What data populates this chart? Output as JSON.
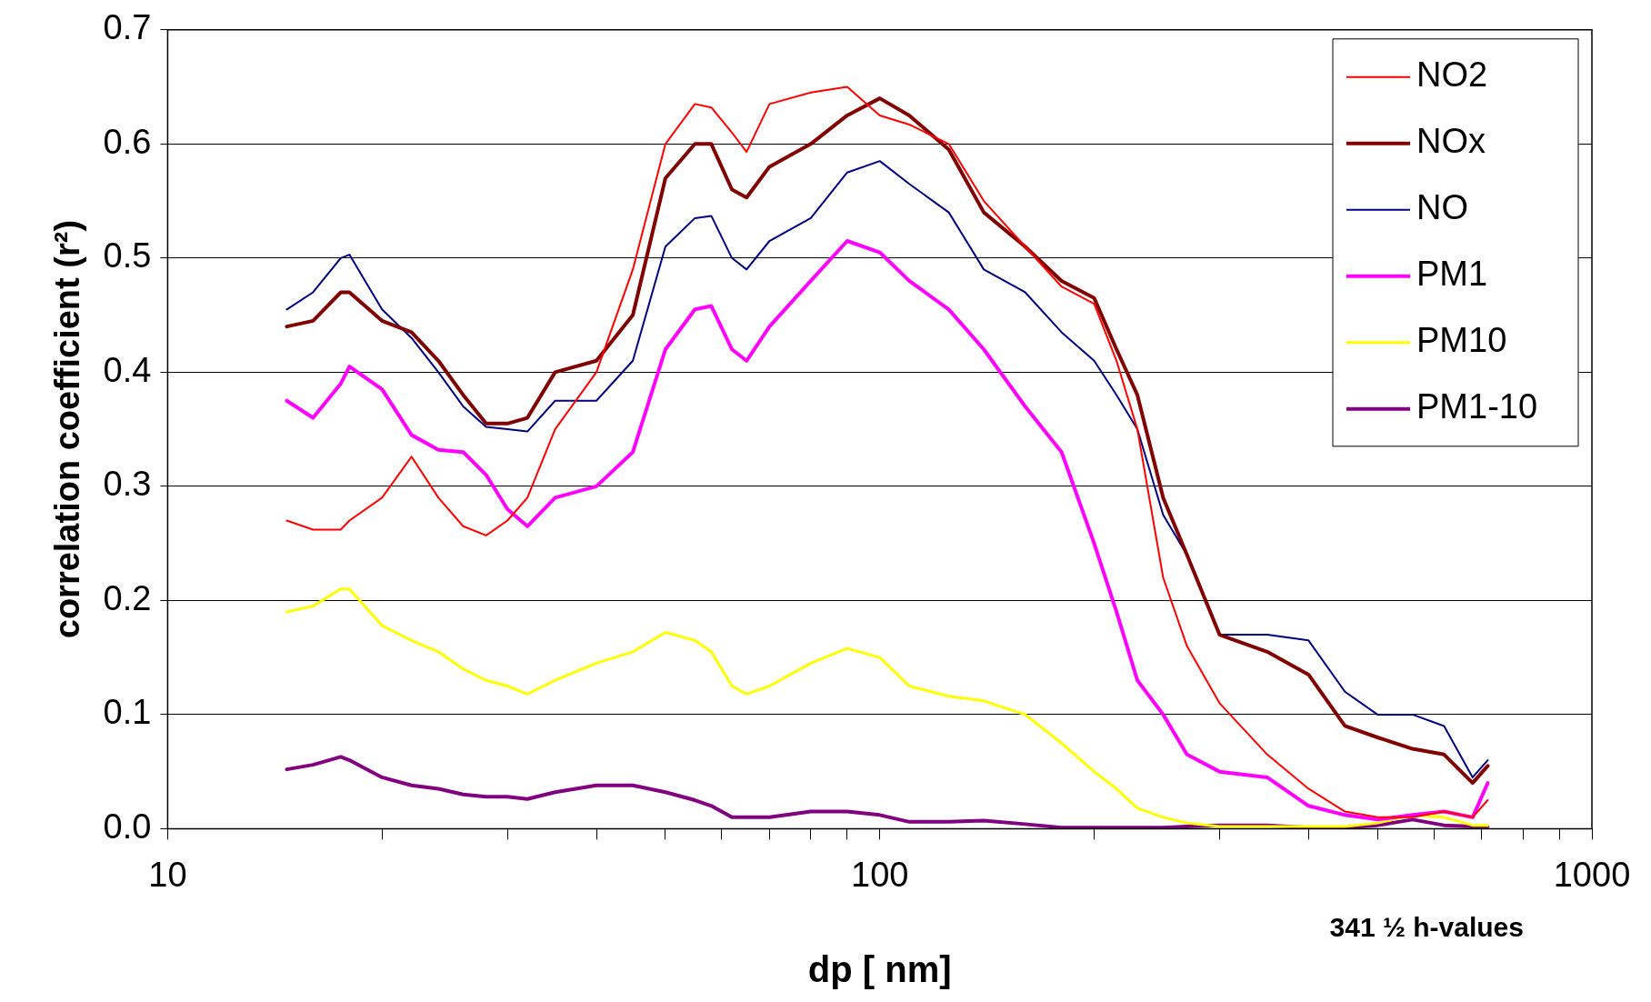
{
  "chart_data": {
    "type": "line",
    "xlabel": "dp [ nm]",
    "ylabel": "correlation coefficient (r²)",
    "log": "x",
    "xlim": [
      10,
      1000
    ],
    "xticks": [
      10,
      {
        "value": 20,
        "label": null
      },
      {
        "value": 30,
        "label": null
      },
      {
        "value": 40,
        "label": null
      },
      {
        "value": 50,
        "label": null
      },
      {
        "value": 60,
        "label": null
      },
      {
        "value": 70,
        "label": null
      },
      {
        "value": 80,
        "label": null
      },
      {
        "value": 90,
        "label": null
      },
      100,
      {
        "value": 200,
        "label": null
      },
      {
        "value": 300,
        "label": null
      },
      {
        "value": 400,
        "label": null
      },
      {
        "value": 500,
        "label": null
      },
      {
        "value": 600,
        "label": null
      },
      {
        "value": 700,
        "label": null
      },
      {
        "value": 800,
        "label": null
      },
      {
        "value": 900,
        "label": null
      },
      1000
    ],
    "ylim": [
      0,
      0.7
    ],
    "yticks": [
      {
        "value": 0,
        "label": "0.0"
      },
      {
        "value": 0.1,
        "label": "0.1"
      },
      {
        "value": 0.2,
        "label": "0.2"
      },
      {
        "value": 0.3,
        "label": "0.3"
      },
      {
        "value": 0.4,
        "label": "0.4"
      },
      {
        "value": 0.5,
        "label": "0.5"
      },
      {
        "value": 0.6,
        "label": "0.6"
      },
      {
        "value": 0.7,
        "label": "0.7"
      }
    ],
    "grid": "y",
    "legend": "top right",
    "marker": "none",
    "annotations": [
      "341 ½ h-values"
    ],
    "x": [
      14.7,
      16,
      17.5,
      18,
      20,
      22,
      24,
      26,
      28,
      30,
      32,
      35,
      40,
      45,
      50,
      55,
      58,
      62,
      65,
      70,
      80,
      90,
      100,
      110,
      125,
      140,
      160,
      180,
      200,
      215,
      230,
      250,
      270,
      300,
      350,
      400,
      450,
      500,
      560,
      620,
      680,
      714
    ],
    "series": [
      {
        "name": "NO2",
        "color": "#ff0000",
        "values": [
          0.27,
          0.262,
          0.262,
          0.27,
          0.29,
          0.326,
          0.29,
          0.265,
          0.257,
          0.27,
          0.29,
          0.35,
          0.4,
          0.49,
          0.6,
          0.635,
          0.632,
          0.61,
          0.593,
          0.635,
          0.645,
          0.65,
          0.625,
          0.617,
          0.6,
          0.55,
          0.51,
          0.475,
          0.46,
          0.41,
          0.35,
          0.22,
          0.16,
          0.11,
          0.065,
          0.035,
          0.015,
          0.01,
          0.01,
          0.015,
          0.01,
          0.025
        ]
      },
      {
        "name": "NOx",
        "color": "#800000",
        "values": [
          0.44,
          0.445,
          0.47,
          0.47,
          0.445,
          0.435,
          0.41,
          0.38,
          0.355,
          0.355,
          0.36,
          0.4,
          0.41,
          0.45,
          0.57,
          0.6,
          0.6,
          0.56,
          0.553,
          0.58,
          0.6,
          0.625,
          0.64,
          0.625,
          0.595,
          0.54,
          0.51,
          0.48,
          0.465,
          0.42,
          0.38,
          0.29,
          0.24,
          0.17,
          0.155,
          0.135,
          0.09,
          0.08,
          0.07,
          0.065,
          0.04,
          0.055
        ]
      },
      {
        "name": "NO",
        "color": "#000080",
        "values": [
          0.455,
          0.47,
          0.5,
          0.503,
          0.455,
          0.43,
          0.4,
          0.37,
          0.352,
          0.35,
          0.348,
          0.375,
          0.375,
          0.41,
          0.51,
          0.535,
          0.537,
          0.5,
          0.49,
          0.515,
          0.535,
          0.575,
          0.585,
          0.565,
          0.54,
          0.49,
          0.47,
          0.435,
          0.41,
          0.38,
          0.35,
          0.275,
          0.24,
          0.17,
          0.17,
          0.165,
          0.12,
          0.1,
          0.1,
          0.09,
          0.045,
          0.06
        ]
      },
      {
        "name": "PM1",
        "color": "#ff00ff",
        "values": [
          0.375,
          0.36,
          0.39,
          0.405,
          0.385,
          0.345,
          0.332,
          0.33,
          0.31,
          0.28,
          0.265,
          0.29,
          0.3,
          0.33,
          0.42,
          0.455,
          0.458,
          0.42,
          0.41,
          0.44,
          0.48,
          0.515,
          0.505,
          0.48,
          0.455,
          0.42,
          0.37,
          0.33,
          0.25,
          0.19,
          0.13,
          0.1,
          0.065,
          0.05,
          0.045,
          0.02,
          0.012,
          0.008,
          0.012,
          0.015,
          0.01,
          0.04
        ]
      },
      {
        "name": "PM10",
        "color": "#ffff00",
        "values": [
          0.19,
          0.195,
          0.21,
          0.21,
          0.178,
          0.165,
          0.155,
          0.14,
          0.13,
          0.125,
          0.118,
          0.13,
          0.145,
          0.155,
          0.172,
          0.165,
          0.155,
          0.125,
          0.118,
          0.125,
          0.145,
          0.158,
          0.15,
          0.125,
          0.116,
          0.112,
          0.1,
          0.075,
          0.05,
          0.035,
          0.018,
          0.01,
          0.005,
          0.002,
          0.002,
          0.002,
          0.002,
          0.005,
          0.012,
          0.01,
          0.003,
          0.003
        ]
      },
      {
        "name": "PM1-10",
        "color": "#800080",
        "values": [
          0.052,
          0.056,
          0.063,
          0.06,
          0.045,
          0.038,
          0.035,
          0.03,
          0.028,
          0.028,
          0.026,
          0.032,
          0.038,
          0.038,
          0.032,
          0.025,
          0.02,
          0.01,
          0.01,
          0.01,
          0.015,
          0.015,
          0.012,
          0.006,
          0.006,
          0.007,
          0.004,
          0.001,
          0.001,
          0.001,
          0.001,
          0.001,
          0.002,
          0.003,
          0.003,
          0.001,
          0.001,
          0.003,
          0.008,
          0.003,
          0.002,
          0.002
        ]
      }
    ]
  }
}
